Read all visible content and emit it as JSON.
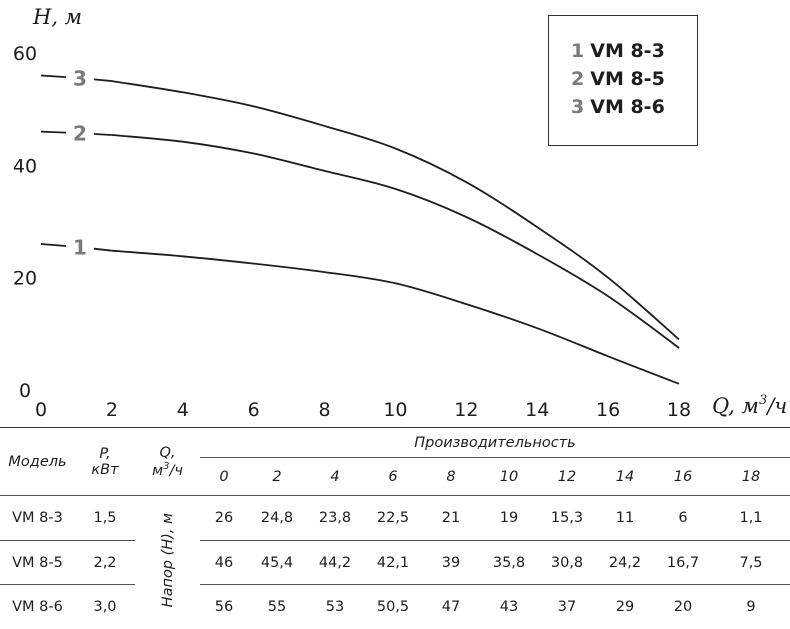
{
  "chart_data": {
    "type": "line",
    "xlabel": "Q, м",
    "xlabel_sup": "3",
    "xlabel_tail": "/ч",
    "ylabel": "H, м",
    "x_ticks": [
      "0",
      "2",
      "4",
      "6",
      "8",
      "10",
      "12",
      "14",
      "16",
      "18"
    ],
    "y_ticks": [
      "0",
      "20",
      "40",
      "60"
    ],
    "xlim": [
      0,
      18
    ],
    "ylim": [
      0,
      60
    ],
    "grid": false,
    "legend_position": "top-right",
    "curve_color": "#1e1e1e",
    "label_color": "#7a7a7a",
    "x": [
      0,
      2,
      4,
      6,
      8,
      10,
      12,
      14,
      16,
      18
    ],
    "series": [
      {
        "label": "1",
        "name": "VM 8-3",
        "values": [
          26,
          24.8,
          23.8,
          22.5,
          21,
          19,
          15.3,
          11,
          6,
          1.1
        ]
      },
      {
        "label": "2",
        "name": "VM 8-5",
        "values": [
          46,
          45.4,
          44.2,
          42.1,
          39,
          35.8,
          30.8,
          24.2,
          16.7,
          7.5
        ]
      },
      {
        "label": "3",
        "name": "VM 8-6",
        "values": [
          56,
          55,
          53,
          50.5,
          47,
          43,
          37,
          29,
          20,
          9
        ]
      }
    ]
  },
  "legend": [
    {
      "num": "1",
      "name": "VM 8-3"
    },
    {
      "num": "2",
      "name": "VM 8-5"
    },
    {
      "num": "3",
      "name": "VM 8-6"
    }
  ],
  "table": {
    "model_header": "Модель",
    "power_header_1": "P,",
    "power_header_2": "кВт",
    "flow_header_1": "Q,",
    "flow_header_2": "м",
    "flow_header_sup": "3",
    "flow_header_3": "/ч",
    "performance_header": "Производительность",
    "head_label": "Напор (Н), м",
    "flow_values": [
      "0",
      "2",
      "4",
      "6",
      "8",
      "10",
      "12",
      "14",
      "16",
      "18"
    ],
    "rows": [
      {
        "model": "VM 8-3",
        "power": "1,5",
        "heads": [
          "26",
          "24,8",
          "23,8",
          "22,5",
          "21",
          "19",
          "15,3",
          "11",
          "6",
          "1,1"
        ]
      },
      {
        "model": "VM 8-5",
        "power": "2,2",
        "heads": [
          "46",
          "45,4",
          "44,2",
          "42,1",
          "39",
          "35,8",
          "30,8",
          "24,2",
          "16,7",
          "7,5"
        ]
      },
      {
        "model": "VM 8-6",
        "power": "3,0",
        "heads": [
          "56",
          "55",
          "53",
          "50,5",
          "47",
          "43",
          "37",
          "29",
          "20",
          "9"
        ]
      }
    ]
  }
}
